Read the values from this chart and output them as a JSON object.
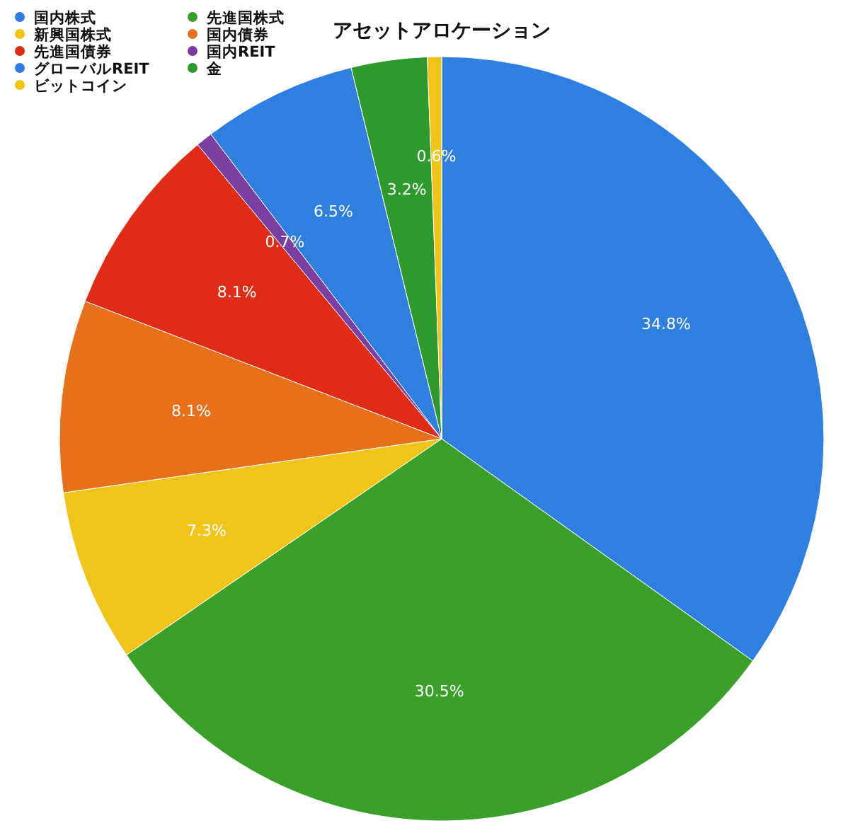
{
  "chart_data": {
    "type": "pie",
    "title": "アセットアロケーション",
    "categories": [
      "国内株式",
      "先進国株式",
      "新興国株式",
      "国内債券",
      "先進国債券",
      "国内REIT",
      "グローバルREIT",
      "金",
      "ビットコイン"
    ],
    "values": [
      34.8,
      30.5,
      7.3,
      8.1,
      8.1,
      0.7,
      6.5,
      3.2,
      0.6
    ],
    "value_labels": [
      "34.8%",
      "30.5%",
      "7.3%",
      "8.1%",
      "8.1%",
      "0.7%",
      "6.5%",
      "3.2%",
      "0.6%"
    ],
    "colors": [
      "#2f7fe0",
      "#3aa02a",
      "#f0c419",
      "#e8701a",
      "#e02b16",
      "#7a3fa0",
      "#2f7fe0",
      "#2e9a2e",
      "#f0c419"
    ],
    "legend": "top left"
  }
}
